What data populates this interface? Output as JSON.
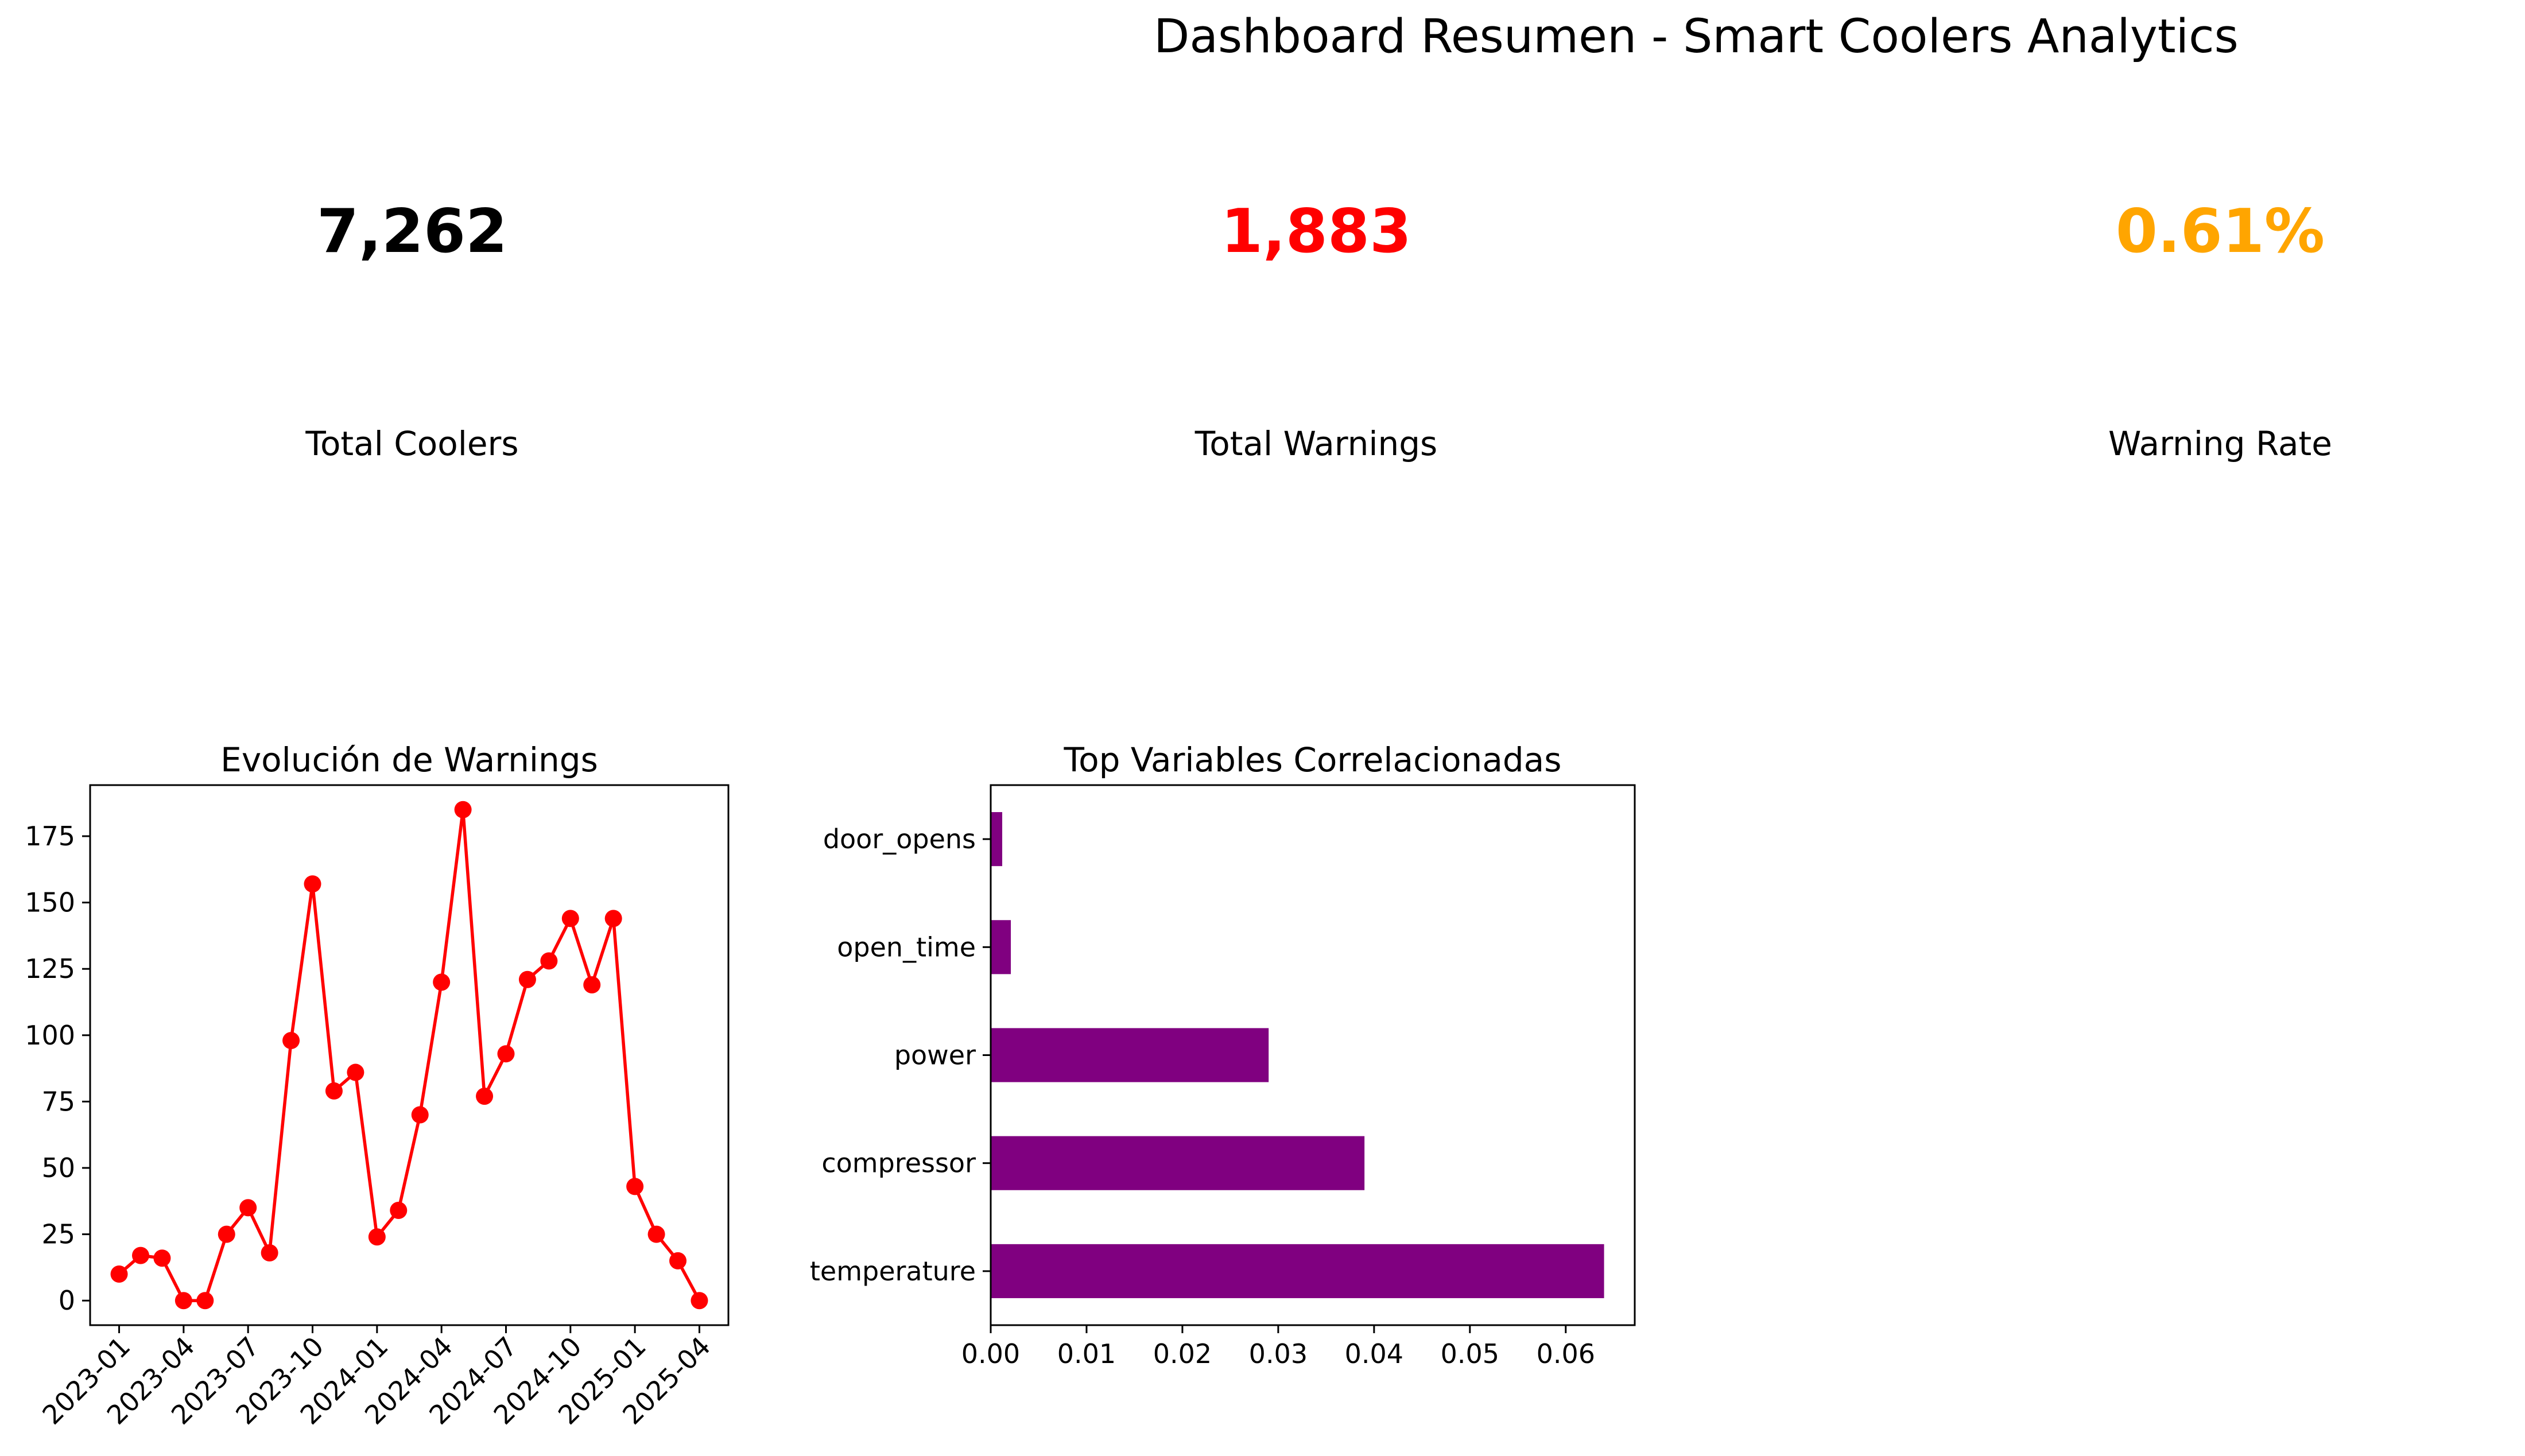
{
  "suptitle": "Dashboard Resumen - Smart Coolers Analytics",
  "kpis": [
    {
      "value": "7,262",
      "label": "Total Coolers",
      "color": "#000000"
    },
    {
      "value": "1,883",
      "label": "Total Warnings",
      "color": "#ff0000"
    },
    {
      "value": "0.61%",
      "label": "Warning Rate",
      "color": "#ffa500"
    }
  ],
  "chart_data": [
    {
      "type": "line",
      "title": "Evolución de Warnings",
      "xlabel": "",
      "ylabel": "",
      "color": "#ff0000",
      "marker": "circle",
      "grid": false,
      "x": [
        "2023-01",
        "2023-02",
        "2023-03",
        "2023-04",
        "2023-05",
        "2023-06",
        "2023-07",
        "2023-08",
        "2023-09",
        "2023-10",
        "2023-11",
        "2023-12",
        "2024-01",
        "2024-02",
        "2024-03",
        "2024-04",
        "2024-05",
        "2024-06",
        "2024-07",
        "2024-08",
        "2024-09",
        "2024-10",
        "2024-11",
        "2024-12",
        "2025-01",
        "2025-02",
        "2025-03",
        "2025-04"
      ],
      "values": [
        10,
        17,
        16,
        0,
        0,
        25,
        35,
        18,
        98,
        157,
        79,
        86,
        24,
        34,
        70,
        120,
        185,
        77,
        93,
        121,
        128,
        144,
        119,
        144,
        43,
        25,
        15,
        0
      ],
      "xticks": [
        "2023-01",
        "2023-04",
        "2023-07",
        "2023-10",
        "2024-01",
        "2024-04",
        "2024-07",
        "2024-10",
        "2025-01",
        "2025-04"
      ],
      "yticks": [
        0,
        25,
        50,
        75,
        100,
        125,
        150,
        175
      ],
      "ylim": [
        -9.25,
        194.25
      ]
    },
    {
      "type": "bar",
      "orientation": "horizontal",
      "title": "Top Variables Correlacionadas",
      "xlabel": "",
      "ylabel": "",
      "color": "#800080",
      "grid": false,
      "categories": [
        "temperature",
        "compressor",
        "power",
        "open_time",
        "door_opens"
      ],
      "values": [
        0.064,
        0.039,
        0.029,
        0.0021,
        0.0012
      ],
      "xticks": [
        0.0,
        0.01,
        0.02,
        0.03,
        0.04,
        0.05,
        0.06
      ],
      "xtick_labels": [
        "0.00",
        "0.01",
        "0.02",
        "0.03",
        "0.04",
        "0.05",
        "0.06"
      ],
      "xlim": [
        0,
        0.0672
      ]
    }
  ]
}
